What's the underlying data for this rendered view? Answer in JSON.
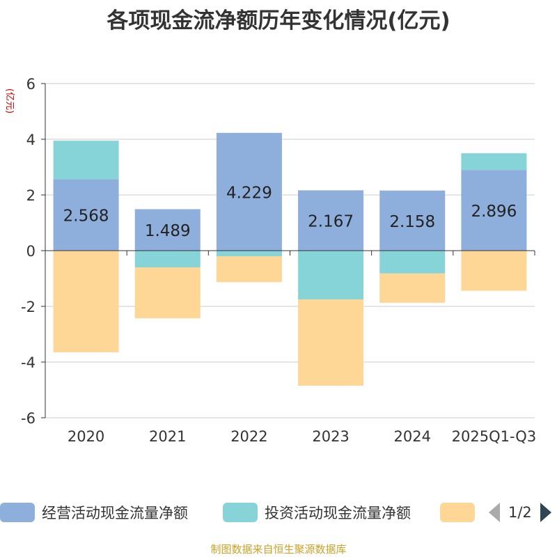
{
  "chart_data": {
    "type": "bar",
    "stacked": true,
    "title": "各项现金流净额历年变化情况(亿元)",
    "ylabel": "(亿元)",
    "xlabel": "",
    "ylim": [
      -6,
      6
    ],
    "yticks": [
      -6,
      -4,
      -2,
      0,
      2,
      4,
      6
    ],
    "categories": [
      "2020",
      "2021",
      "2022",
      "2023",
      "2024",
      "2025Q1-Q3"
    ],
    "series": [
      {
        "name": "经营活动现金流量净额",
        "color": "#8eaedb",
        "values": [
          2.568,
          1.489,
          4.229,
          2.167,
          2.158,
          2.896
        ],
        "labels": [
          "2.568",
          "1.489",
          "4.229",
          "2.167",
          "2.158",
          "2.896"
        ]
      },
      {
        "name": "投资活动现金流量净额",
        "color": "#86d4d8",
        "values": [
          1.38,
          -0.6,
          -0.2,
          -1.75,
          -0.82,
          0.6
        ]
      },
      {
        "name": "",
        "color": "#fed797",
        "values": [
          -3.65,
          -1.83,
          -0.93,
          -3.1,
          -1.05,
          -1.44
        ]
      }
    ],
    "legend_position": "bottom"
  },
  "legend": {
    "page": "1/2"
  },
  "source": "制图数据来自恒生聚源数据库"
}
